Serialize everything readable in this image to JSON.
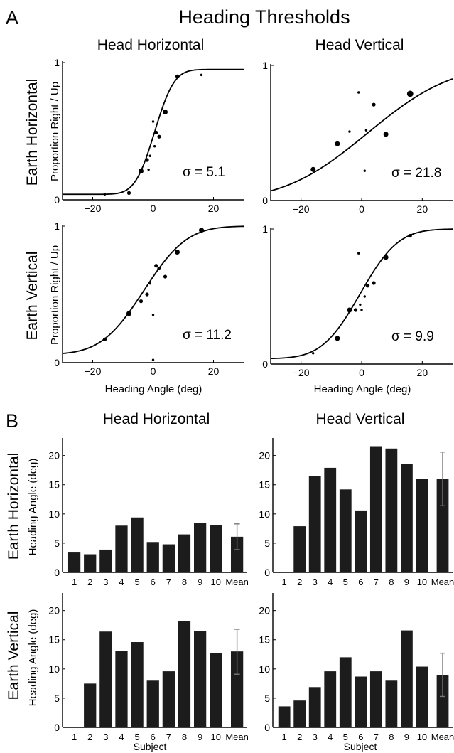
{
  "panel_a": {
    "letter": "A",
    "title": "Heading Thresholds",
    "col_titles": [
      "Head Horizontal",
      "Head Vertical"
    ],
    "row_titles": [
      "Earth Horizontal",
      "Earth Vertical"
    ],
    "ylabel": "Proportion Right / Up",
    "xlabel": "Heading Angle (deg)"
  },
  "panel_b": {
    "letter": "B",
    "col_titles": [
      "Head Horizontal",
      "Head Vertical"
    ],
    "row_titles": [
      "Earth Horizontal",
      "Earth Vertical"
    ],
    "ylabel": "Heading Angle (deg)",
    "xlabel": "Subject"
  },
  "chart_data": [
    {
      "type": "scatter",
      "row": "Earth Horizontal",
      "column": "Head Horizontal",
      "xlim": [
        -30,
        30
      ],
      "ylim": [
        0,
        1
      ],
      "xticks": [
        -20,
        0,
        20
      ],
      "yticks": [
        0,
        1
      ],
      "sigma_label": "σ = 5.1",
      "fit": {
        "mu": 0.5,
        "sigma": 5.1,
        "lower": 0.04,
        "upper": 0.95
      },
      "points": [
        {
          "x": -16,
          "y": 0.04,
          "n": 1
        },
        {
          "x": -8,
          "y": 0.05,
          "n": 2
        },
        {
          "x": -4,
          "y": 0.21,
          "n": 3
        },
        {
          "x": -2,
          "y": 0.29,
          "n": 2
        },
        {
          "x": -1.5,
          "y": 0.22,
          "n": 1
        },
        {
          "x": -1,
          "y": 0.32,
          "n": 1
        },
        {
          "x": 0,
          "y": 0.57,
          "n": 1
        },
        {
          "x": 0.5,
          "y": 0.39,
          "n": 1
        },
        {
          "x": 1,
          "y": 0.49,
          "n": 2
        },
        {
          "x": 2,
          "y": 0.46,
          "n": 2
        },
        {
          "x": 4,
          "y": 0.64,
          "n": 3
        },
        {
          "x": 8,
          "y": 0.9,
          "n": 2
        },
        {
          "x": 16,
          "y": 0.91,
          "n": 1
        }
      ]
    },
    {
      "type": "scatter",
      "row": "Earth Horizontal",
      "column": "Head Vertical",
      "xlim": [
        -30,
        30
      ],
      "ylim": [
        0,
        1
      ],
      "xticks": [
        -20,
        0,
        20
      ],
      "yticks": [
        0,
        1
      ],
      "sigma_label": "σ = 21.8",
      "fit": {
        "mu": 2,
        "sigma": 21.8,
        "lower": 0,
        "upper": 1
      },
      "points": [
        {
          "x": -16,
          "y": 0.23,
          "n": 3
        },
        {
          "x": -8,
          "y": 0.42,
          "n": 3
        },
        {
          "x": -4,
          "y": 0.51,
          "n": 1
        },
        {
          "x": -1,
          "y": 0.8,
          "n": 1
        },
        {
          "x": 1,
          "y": 0.22,
          "n": 1
        },
        {
          "x": 1.5,
          "y": 0.52,
          "n": 1
        },
        {
          "x": 4,
          "y": 0.71,
          "n": 2
        },
        {
          "x": 8,
          "y": 0.49,
          "n": 3
        },
        {
          "x": 16,
          "y": 0.79,
          "n": 4
        }
      ]
    },
    {
      "type": "scatter",
      "row": "Earth Vertical",
      "column": "Head Horizontal",
      "xlim": [
        -30,
        30
      ],
      "ylim": [
        0,
        1
      ],
      "xticks": [
        -20,
        0,
        20
      ],
      "yticks": [
        0,
        1
      ],
      "sigma_label": "σ = 11.2",
      "fit": {
        "mu": -3,
        "sigma": 11.2,
        "lower": 0.06,
        "upper": 1
      },
      "points": [
        {
          "x": -16,
          "y": 0.17,
          "n": 2
        },
        {
          "x": -8,
          "y": 0.36,
          "n": 3
        },
        {
          "x": -4,
          "y": 0.45,
          "n": 2
        },
        {
          "x": -2,
          "y": 0.5,
          "n": 2
        },
        {
          "x": -1,
          "y": 0.58,
          "n": 1
        },
        {
          "x": 0,
          "y": 0.35,
          "n": 1
        },
        {
          "x": 0,
          "y": 0.02,
          "n": 1
        },
        {
          "x": 1,
          "y": 0.71,
          "n": 2
        },
        {
          "x": 2,
          "y": 0.69,
          "n": 2
        },
        {
          "x": 4,
          "y": 0.63,
          "n": 2
        },
        {
          "x": 8,
          "y": 0.81,
          "n": 3
        },
        {
          "x": 16,
          "y": 0.97,
          "n": 3
        }
      ]
    },
    {
      "type": "scatter",
      "row": "Earth Vertical",
      "column": "Head Vertical",
      "xlim": [
        -30,
        30
      ],
      "ylim": [
        0,
        1
      ],
      "xticks": [
        -20,
        0,
        20
      ],
      "yticks": [
        0,
        1
      ],
      "sigma_label": "σ = 9.9",
      "fit": {
        "mu": -0.5,
        "sigma": 9.9,
        "lower": 0.04,
        "upper": 1
      },
      "points": [
        {
          "x": -16,
          "y": 0.08,
          "n": 1
        },
        {
          "x": -8,
          "y": 0.19,
          "n": 3
        },
        {
          "x": -4,
          "y": 0.4,
          "n": 3
        },
        {
          "x": -2,
          "y": 0.4,
          "n": 2
        },
        {
          "x": -1,
          "y": 0.82,
          "n": 1
        },
        {
          "x": -0.5,
          "y": 0.44,
          "n": 1
        },
        {
          "x": 0,
          "y": 0.4,
          "n": 1
        },
        {
          "x": 1,
          "y": 0.5,
          "n": 1
        },
        {
          "x": 2,
          "y": 0.58,
          "n": 2
        },
        {
          "x": 4,
          "y": 0.6,
          "n": 2
        },
        {
          "x": 8,
          "y": 0.79,
          "n": 3
        },
        {
          "x": 16,
          "y": 0.95,
          "n": 2
        }
      ]
    },
    {
      "type": "bar",
      "row": "Earth Horizontal",
      "column": "Head Horizontal",
      "categories": [
        "1",
        "2",
        "3",
        "4",
        "5",
        "6",
        "7",
        "8",
        "9",
        "10",
        "Mean"
      ],
      "values": [
        3.4,
        3.1,
        3.9,
        8.0,
        9.4,
        5.2,
        4.8,
        6.5,
        8.5,
        8.1,
        6.1
      ],
      "error": {
        "category": "Mean",
        "low": 3.9,
        "high": 8.3
      },
      "ylim": [
        0,
        23
      ],
      "yticks": [
        0,
        5,
        10,
        15,
        20
      ]
    },
    {
      "type": "bar",
      "row": "Earth Horizontal",
      "column": "Head Vertical",
      "categories": [
        "1",
        "2",
        "3",
        "4",
        "5",
        "6",
        "7",
        "8",
        "9",
        "10",
        "Mean"
      ],
      "values": [
        0,
        7.9,
        16.5,
        17.9,
        14.2,
        10.6,
        21.6,
        21.2,
        18.6,
        16.0,
        16.0
      ],
      "error": {
        "category": "Mean",
        "low": 11.4,
        "high": 20.6
      },
      "ylim": [
        0,
        23
      ],
      "yticks": [
        0,
        5,
        10,
        15,
        20
      ]
    },
    {
      "type": "bar",
      "row": "Earth Vertical",
      "column": "Head Horizontal",
      "categories": [
        "1",
        "2",
        "3",
        "4",
        "5",
        "6",
        "7",
        "8",
        "9",
        "10",
        "Mean"
      ],
      "values": [
        0,
        7.5,
        16.4,
        13.1,
        14.6,
        8.0,
        9.6,
        18.2,
        16.5,
        12.7,
        13.0
      ],
      "error": {
        "category": "Mean",
        "low": 9.1,
        "high": 16.8
      },
      "ylim": [
        0,
        23
      ],
      "yticks": [
        0,
        5,
        10,
        15,
        20
      ]
    },
    {
      "type": "bar",
      "row": "Earth Vertical",
      "column": "Head Vertical",
      "categories": [
        "1",
        "2",
        "3",
        "4",
        "5",
        "6",
        "7",
        "8",
        "9",
        "10",
        "Mean"
      ],
      "values": [
        3.6,
        4.6,
        6.9,
        9.6,
        12.0,
        8.7,
        9.6,
        8.0,
        16.6,
        10.4,
        9.0
      ],
      "error": {
        "category": "Mean",
        "low": 5.3,
        "high": 12.7
      },
      "ylim": [
        0,
        23
      ],
      "yticks": [
        0,
        5,
        10,
        15,
        20
      ]
    }
  ]
}
